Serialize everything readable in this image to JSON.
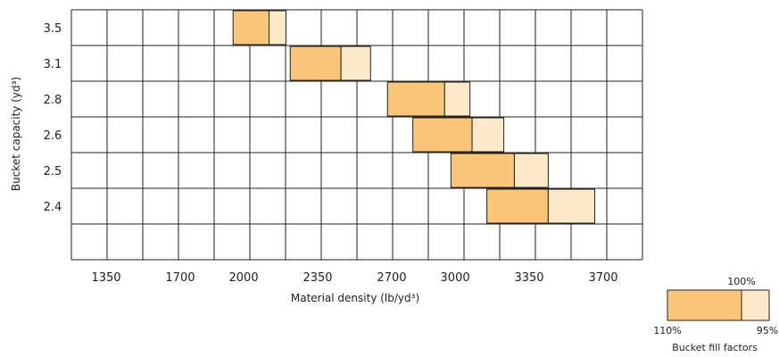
{
  "chart_data": {
    "type": "bar",
    "title": "",
    "xlabel": "Material density (lb/yd³)",
    "ylabel": "Bucket capacity (yd³)",
    "x_ticks": [
      1350,
      1700,
      2000,
      2350,
      2700,
      3000,
      3350,
      3700
    ],
    "y_ticks": [
      "3.5",
      "3.1",
      "2.8",
      "2.6",
      "2.5",
      "2.4"
    ],
    "grid": true,
    "colors": {
      "fill_110_100": "#FBC677",
      "fill_100_95": "#FDE9C9",
      "grid": "#222222"
    },
    "bars": [
      {
        "capacity": "3.5",
        "density_110": 1950,
        "density_100": 2120,
        "density_95": 2200
      },
      {
        "capacity": "3.1",
        "density_110": 2220,
        "density_100": 2460,
        "density_95": 2600
      },
      {
        "capacity": "2.8",
        "density_110": 2680,
        "density_100": 2950,
        "density_95": 3070
      },
      {
        "capacity": "2.6",
        "density_110": 2800,
        "density_100": 3080,
        "density_95": 3230
      },
      {
        "capacity": "2.5",
        "density_110": 2980,
        "density_100": 3280,
        "density_95": 3440
      },
      {
        "capacity": "2.4",
        "density_110": 3150,
        "density_100": 3440,
        "density_95": 3660
      }
    ]
  },
  "legend": {
    "title": "Bucket fill factors",
    "label_110": "110%",
    "label_100": "100%",
    "label_95": "95%"
  }
}
